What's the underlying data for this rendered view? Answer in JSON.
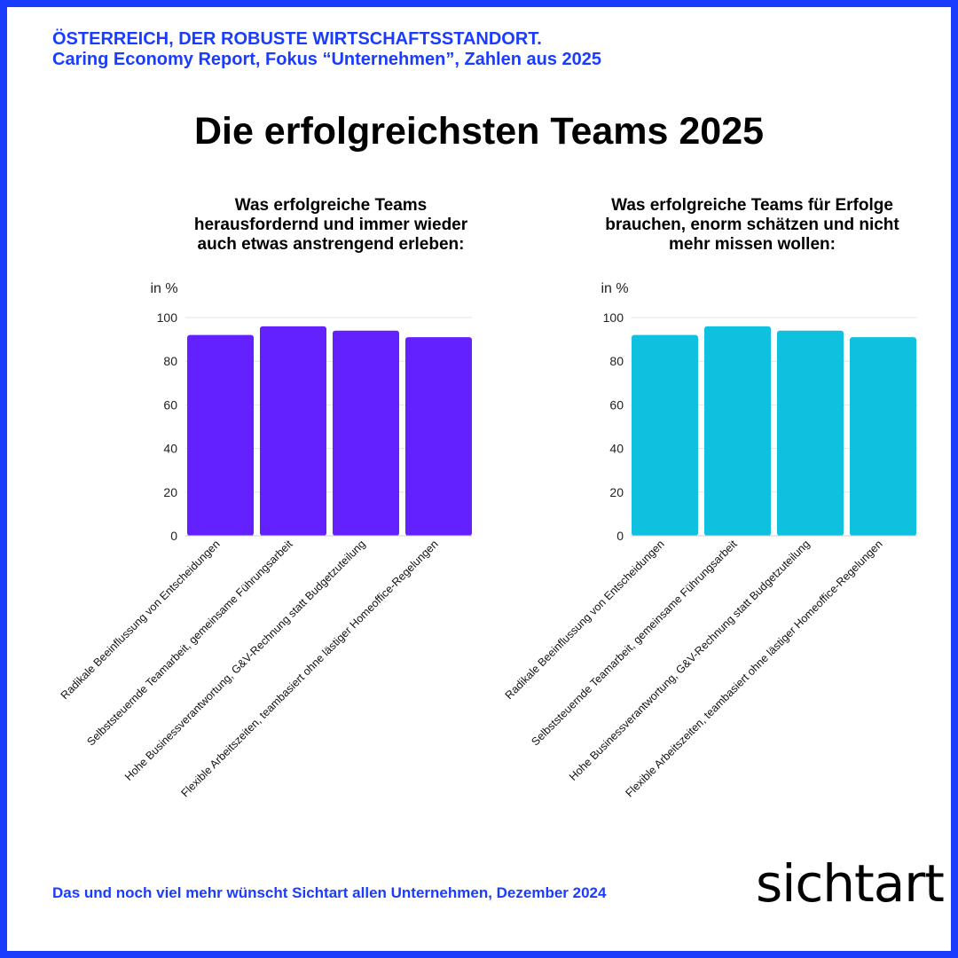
{
  "header": {
    "line1": "ÖSTERREICH, DER ROBUSTE WIRTSCHAFTSSTANDORT.",
    "line2": "Caring Economy Report, Fokus “Unternehmen”, Zahlen aus 2025"
  },
  "main_title": "Die erfolgreichsten Teams 2025",
  "footer": "Das und noch viel mehr wünscht Sichtart allen Unternehmen, Dezember 2024",
  "logo": "sichtart",
  "chart_data": [
    {
      "type": "bar",
      "title_lines": [
        "Was erfolgreiche Teams",
        "herausfordernd und immer wieder",
        "auch etwas anstrengend erleben:"
      ],
      "ylabel": "in %",
      "ylim": [
        0,
        100
      ],
      "yticks": [
        0,
        20,
        40,
        60,
        80,
        100
      ],
      "grid": true,
      "color": "#6321ff",
      "categories": [
        "Radikale Beeinflussung von Entscheidungen",
        "Selbststeuernde Teamarbeit, gemeinsame Führungsarbeit",
        "Hohe Businessverantwortung, G&V-Rechnung statt Budgetzuteilung",
        "Flexible Arbeitszeiten, teambasiert ohne lästiger Homeoffice-Regelungen"
      ],
      "values": [
        92,
        96,
        94,
        91
      ]
    },
    {
      "type": "bar",
      "title_lines": [
        "Was erfolgreiche Teams für Erfolge",
        "brauchen, enorm schätzen und nicht",
        "mehr missen wollen:"
      ],
      "ylabel": "in %",
      "ylim": [
        0,
        100
      ],
      "yticks": [
        0,
        20,
        40,
        60,
        80,
        100
      ],
      "grid": true,
      "color": "#0fc0df",
      "categories": [
        "Radikale Beeinflussung von Entscheidungen",
        "Selbststeuernde Teamarbeit, gemeinsame Führungsarbeit",
        "Hohe Businessverantwortung, G&V-Rechnung statt Budgetzuteilung",
        "Flexible Arbeitszeiten, teambasiert ohne lästiger Homeoffice-Regelungen"
      ],
      "values": [
        92,
        96,
        94,
        91
      ]
    }
  ]
}
